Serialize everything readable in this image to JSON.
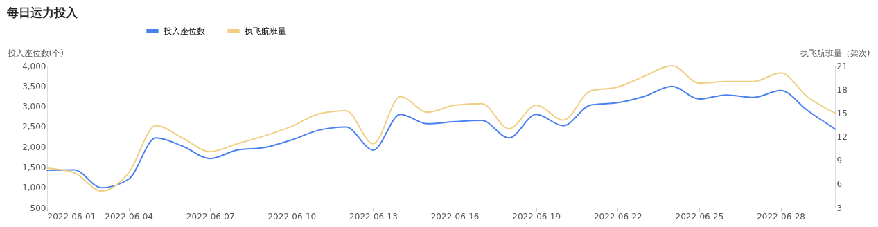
{
  "chart_data": {
    "type": "line",
    "title": "每日运力投入",
    "ylabel": "投入座位数(个)",
    "y2label": "执飞航班量（架次)",
    "x": [
      "2022-06-01",
      "2022-06-02",
      "2022-06-03",
      "2022-06-04",
      "2022-06-05",
      "2022-06-06",
      "2022-06-07",
      "2022-06-08",
      "2022-06-09",
      "2022-06-10",
      "2022-06-11",
      "2022-06-12",
      "2022-06-13",
      "2022-06-14",
      "2022-06-15",
      "2022-06-16",
      "2022-06-17",
      "2022-06-18",
      "2022-06-19",
      "2022-06-20",
      "2022-06-21",
      "2022-06-22",
      "2022-06-23",
      "2022-06-24",
      "2022-06-25",
      "2022-06-26",
      "2022-06-27",
      "2022-06-28",
      "2022-06-29",
      "2022-06-30"
    ],
    "series": [
      {
        "name": "投入座位数",
        "color": "#4a80f0",
        "values": [
          1420,
          1430,
          990,
          1200,
          2220,
          2010,
          1710,
          1920,
          1980,
          2170,
          2410,
          2490,
          1920,
          2800,
          2570,
          2620,
          2650,
          2220,
          2800,
          2520,
          3030,
          3090,
          3250,
          3490,
          3180,
          3280,
          3220,
          3390,
          2890,
          2440
        ]
      },
      {
        "name": "执飞航班量",
        "color": "#f0cf85",
        "axis": "y2",
        "values": [
          8.0,
          7.4,
          5.1,
          7.4,
          13.4,
          11.8,
          10.1,
          11.1,
          12.1,
          13.3,
          14.9,
          15.3,
          11.1,
          17.1,
          15.1,
          16.0,
          16.2,
          13.0,
          16.0,
          14.1,
          17.8,
          18.3,
          19.7,
          21.0,
          18.8,
          19.0,
          19.0,
          20.1,
          17.0,
          15.0
        ]
      }
    ],
    "xlim": [
      "2022-06-01",
      "2022-06-30"
    ],
    "xticks": [
      "2022-06-01",
      "2022-06-04",
      "2022-06-07",
      "2022-06-10",
      "2022-06-13",
      "2022-06-16",
      "2022-06-19",
      "2022-06-22",
      "2022-06-25",
      "2022-06-28"
    ],
    "ylim": [
      500,
      4000
    ],
    "yticks": [
      500,
      {
        "value": 1000,
        "label": "1,000"
      },
      {
        "value": 1500,
        "label": "1,500"
      },
      {
        "value": 2000,
        "label": "2,000"
      },
      {
        "value": 2500,
        "label": "2,500"
      },
      {
        "value": 3000,
        "label": "3,000"
      },
      {
        "value": 3500,
        "label": "3,500"
      },
      {
        "value": 4000,
        "label": "4,000"
      }
    ],
    "y2lim": [
      3,
      21
    ],
    "y2ticks": [
      3,
      6,
      9,
      12,
      15,
      18,
      21
    ],
    "legend": "top left",
    "grid": false
  }
}
